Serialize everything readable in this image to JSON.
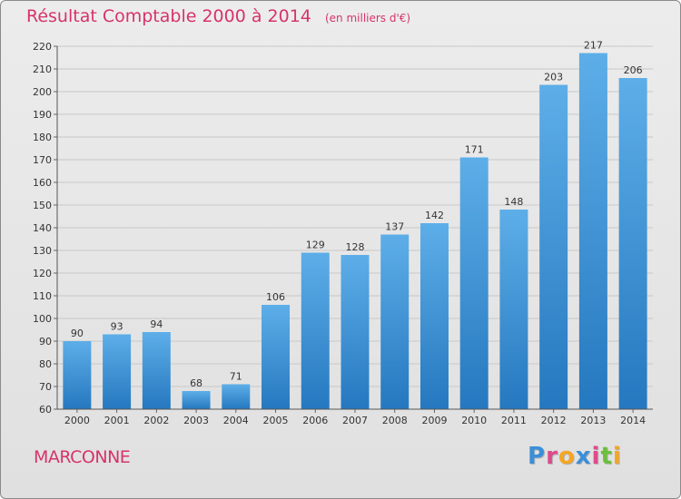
{
  "title": "Résultat Comptable 2000 à 2014",
  "subtitle": "(en milliers d'€)",
  "commune": "MARCONNE",
  "logo": {
    "text": "Proxiti",
    "colors": [
      "#3b8fd9",
      "#e04a8c",
      "#f5a623",
      "#3b8fd9",
      "#e04a8c",
      "#6cbf3b",
      "#f5a623"
    ]
  },
  "colors": {
    "bar_top": "#5daee8",
    "bar_bottom": "#2578bf",
    "title": "#d6336c",
    "grid": "#c8c8c8"
  },
  "chart_data": {
    "type": "bar",
    "title": "Résultat Comptable 2000 à 2014",
    "xlabel": "",
    "ylabel": "",
    "categories": [
      "2000",
      "2001",
      "2002",
      "2003",
      "2004",
      "2005",
      "2006",
      "2007",
      "2008",
      "2009",
      "2010",
      "2011",
      "2012",
      "2013",
      "2014"
    ],
    "values": [
      90,
      93,
      94,
      68,
      71,
      106,
      129,
      128,
      137,
      142,
      171,
      148,
      203,
      217,
      206
    ],
    "ylim": [
      60,
      220
    ],
    "yticks": [
      60,
      70,
      80,
      90,
      100,
      110,
      120,
      130,
      140,
      150,
      160,
      170,
      180,
      190,
      200,
      210,
      220
    ],
    "grid": true,
    "data_labels": true
  }
}
